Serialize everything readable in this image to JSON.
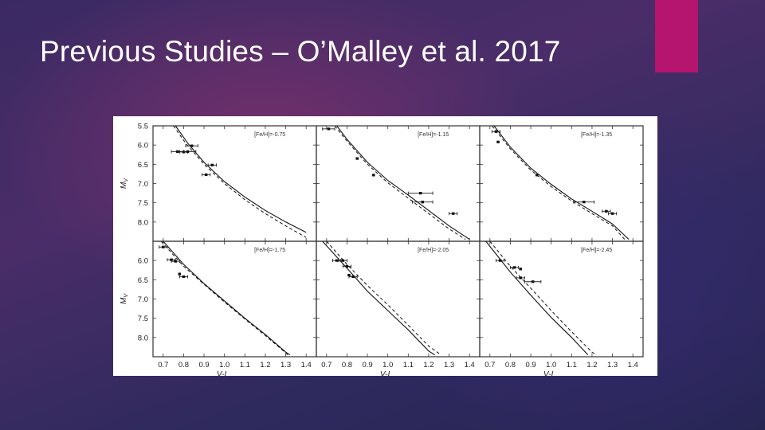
{
  "slide": {
    "title": "Previous Studies – O’Malley et al. 2017",
    "accent_color": "#b5156e",
    "title_color": "#ffffff"
  },
  "chart_data": {
    "type": "scatter",
    "layout": "2x3 grid",
    "xlabel": "V-I",
    "ylabel": "MV",
    "ylabel_main": "M",
    "ylabel_sub": "V",
    "xlim": [
      0.65,
      1.45
    ],
    "ylim": [
      8.5,
      5.5
    ],
    "y_inverted": true,
    "xticks": [
      0.7,
      0.8,
      0.9,
      1.0,
      1.1,
      1.2,
      1.3,
      1.4
    ],
    "xtick_labels": [
      "0.7",
      "0.8",
      "0.9",
      "1.0",
      "1.1",
      "1.2",
      "1.3",
      "1.4"
    ],
    "yticks": [
      5.5,
      6.0,
      6.5,
      7.0,
      7.5,
      8.0
    ],
    "ytick_labels": [
      "5.5",
      "6.0",
      "6.5",
      "7.0",
      "7.5",
      "8.0"
    ],
    "grid": false,
    "panels": [
      {
        "label": "[Fe/H]=-0.75",
        "points": [
          {
            "x": 0.77,
            "y": 6.17,
            "xerr": 0.03
          },
          {
            "x": 0.8,
            "y": 6.18,
            "xerr": 0.02
          },
          {
            "x": 0.82,
            "y": 6.17,
            "xerr": 0.04
          },
          {
            "x": 0.84,
            "y": 6.02,
            "xerr": 0.03
          },
          {
            "x": 0.91,
            "y": 6.77,
            "xerr": 0.02
          },
          {
            "x": 0.94,
            "y": 6.52,
            "xerr": 0.02
          }
        ],
        "solid_curve": [
          {
            "x": 0.76,
            "y": 5.5
          },
          {
            "x": 0.82,
            "y": 5.95
          },
          {
            "x": 0.9,
            "y": 6.45
          },
          {
            "x": 1.0,
            "y": 6.95
          },
          {
            "x": 1.1,
            "y": 7.35
          },
          {
            "x": 1.2,
            "y": 7.7
          },
          {
            "x": 1.3,
            "y": 8.0
          },
          {
            "x": 1.4,
            "y": 8.27
          }
        ],
        "dashed_curve": [
          {
            "x": 0.75,
            "y": 5.5
          },
          {
            "x": 0.81,
            "y": 5.95
          },
          {
            "x": 0.9,
            "y": 6.5
          },
          {
            "x": 1.0,
            "y": 7.0
          },
          {
            "x": 1.1,
            "y": 7.42
          },
          {
            "x": 1.2,
            "y": 7.78
          },
          {
            "x": 1.3,
            "y": 8.1
          },
          {
            "x": 1.4,
            "y": 8.4
          }
        ]
      },
      {
        "label": "[Fe/H]=-1.15",
        "points": [
          {
            "x": 0.71,
            "y": 5.58,
            "xerr": 0.03
          },
          {
            "x": 0.85,
            "y": 6.35,
            "xerr": 0.0
          },
          {
            "x": 0.93,
            "y": 6.78,
            "xerr": 0.0
          },
          {
            "x": 1.16,
            "y": 7.25,
            "xerr": 0.06
          },
          {
            "x": 1.17,
            "y": 7.48,
            "xerr": 0.05
          },
          {
            "x": 1.32,
            "y": 7.78,
            "xerr": 0.02
          }
        ],
        "solid_curve": [
          {
            "x": 0.75,
            "y": 5.5
          },
          {
            "x": 0.8,
            "y": 5.85
          },
          {
            "x": 0.9,
            "y": 6.45
          },
          {
            "x": 1.0,
            "y": 6.92
          },
          {
            "x": 1.1,
            "y": 7.3
          },
          {
            "x": 1.2,
            "y": 7.7
          },
          {
            "x": 1.3,
            "y": 8.1
          },
          {
            "x": 1.4,
            "y": 8.45
          }
        ],
        "dashed_curve": [
          {
            "x": 0.74,
            "y": 5.5
          },
          {
            "x": 0.8,
            "y": 5.9
          },
          {
            "x": 0.9,
            "y": 6.5
          },
          {
            "x": 1.0,
            "y": 6.98
          },
          {
            "x": 1.1,
            "y": 7.38
          },
          {
            "x": 1.2,
            "y": 7.78
          },
          {
            "x": 1.3,
            "y": 8.18
          },
          {
            "x": 1.38,
            "y": 8.45
          }
        ]
      },
      {
        "label": "[Fe/H]=-1.35",
        "points": [
          {
            "x": 0.73,
            "y": 5.65,
            "xerr": 0.02
          },
          {
            "x": 0.74,
            "y": 5.92,
            "xerr": 0.0
          },
          {
            "x": 0.93,
            "y": 6.78,
            "xerr": 0.0
          },
          {
            "x": 1.16,
            "y": 7.48,
            "xerr": 0.05
          },
          {
            "x": 1.27,
            "y": 7.72,
            "xerr": 0.02
          },
          {
            "x": 1.3,
            "y": 7.78,
            "xerr": 0.02
          }
        ],
        "solid_curve": [
          {
            "x": 0.72,
            "y": 5.5
          },
          {
            "x": 0.8,
            "y": 6.05
          },
          {
            "x": 0.9,
            "y": 6.6
          },
          {
            "x": 1.0,
            "y": 7.02
          },
          {
            "x": 1.1,
            "y": 7.4
          },
          {
            "x": 1.2,
            "y": 7.72
          },
          {
            "x": 1.3,
            "y": 8.05
          },
          {
            "x": 1.38,
            "y": 8.45
          }
        ],
        "dashed_curve": [
          {
            "x": 0.71,
            "y": 5.5
          },
          {
            "x": 0.8,
            "y": 6.1
          },
          {
            "x": 0.9,
            "y": 6.65
          },
          {
            "x": 1.0,
            "y": 7.08
          },
          {
            "x": 1.1,
            "y": 7.45
          },
          {
            "x": 1.2,
            "y": 7.78
          },
          {
            "x": 1.3,
            "y": 8.1
          },
          {
            "x": 1.36,
            "y": 8.45
          }
        ]
      },
      {
        "label": "[Fe/H]=-1.75",
        "points": [
          {
            "x": 0.7,
            "y": 5.65,
            "xerr": 0.02
          },
          {
            "x": 0.74,
            "y": 5.98,
            "xerr": 0.02
          },
          {
            "x": 0.76,
            "y": 6.02,
            "xerr": 0.02
          },
          {
            "x": 0.78,
            "y": 6.35,
            "xerr": 0.0
          },
          {
            "x": 0.8,
            "y": 6.42,
            "xerr": 0.02
          }
        ],
        "solid_curve": [
          {
            "x": 0.7,
            "y": 5.5
          },
          {
            "x": 0.8,
            "y": 6.1
          },
          {
            "x": 0.9,
            "y": 6.6
          },
          {
            "x": 1.0,
            "y": 7.05
          },
          {
            "x": 1.1,
            "y": 7.5
          },
          {
            "x": 1.2,
            "y": 7.92
          },
          {
            "x": 1.3,
            "y": 8.38
          },
          {
            "x": 1.32,
            "y": 8.45
          }
        ],
        "dashed_curve": [
          {
            "x": 0.69,
            "y": 5.5
          },
          {
            "x": 0.8,
            "y": 6.15
          },
          {
            "x": 0.9,
            "y": 6.62
          },
          {
            "x": 1.0,
            "y": 7.08
          },
          {
            "x": 1.1,
            "y": 7.52
          },
          {
            "x": 1.2,
            "y": 7.95
          },
          {
            "x": 1.3,
            "y": 8.4
          },
          {
            "x": 1.31,
            "y": 8.45
          }
        ]
      },
      {
        "label": "[Fe/H]=-2.05",
        "points": [
          {
            "x": 0.75,
            "y": 6.0,
            "xerr": 0.02
          },
          {
            "x": 0.78,
            "y": 6.0,
            "xerr": 0.02
          },
          {
            "x": 0.8,
            "y": 6.15,
            "xerr": 0.02
          },
          {
            "x": 0.81,
            "y": 6.38,
            "xerr": 0.0
          },
          {
            "x": 0.83,
            "y": 6.42,
            "xerr": 0.02
          }
        ],
        "solid_curve": [
          {
            "x": 0.68,
            "y": 5.5
          },
          {
            "x": 0.8,
            "y": 6.2
          },
          {
            "x": 0.9,
            "y": 6.8
          },
          {
            "x": 1.0,
            "y": 7.3
          },
          {
            "x": 1.1,
            "y": 7.8
          },
          {
            "x": 1.2,
            "y": 8.35
          },
          {
            "x": 1.23,
            "y": 8.45
          }
        ],
        "dashed_curve": [
          {
            "x": 0.7,
            "y": 5.5
          },
          {
            "x": 0.8,
            "y": 6.1
          },
          {
            "x": 0.9,
            "y": 6.65
          },
          {
            "x": 1.0,
            "y": 7.15
          },
          {
            "x": 1.1,
            "y": 7.68
          },
          {
            "x": 1.2,
            "y": 8.22
          },
          {
            "x": 1.26,
            "y": 8.45
          }
        ]
      },
      {
        "label": "[Fe/H]=-2.45",
        "points": [
          {
            "x": 0.75,
            "y": 6.0,
            "xerr": 0.02
          },
          {
            "x": 0.82,
            "y": 6.18,
            "xerr": 0.02
          },
          {
            "x": 0.85,
            "y": 6.22,
            "xerr": 0.0
          },
          {
            "x": 0.85,
            "y": 6.45,
            "xerr": 0.02
          },
          {
            "x": 0.91,
            "y": 6.55,
            "xerr": 0.04
          }
        ],
        "solid_curve": [
          {
            "x": 0.68,
            "y": 5.5
          },
          {
            "x": 0.8,
            "y": 6.3
          },
          {
            "x": 0.9,
            "y": 6.9
          },
          {
            "x": 1.0,
            "y": 7.48
          },
          {
            "x": 1.1,
            "y": 8.0
          },
          {
            "x": 1.18,
            "y": 8.45
          }
        ],
        "dashed_curve": [
          {
            "x": 0.7,
            "y": 5.5
          },
          {
            "x": 0.8,
            "y": 6.15
          },
          {
            "x": 0.9,
            "y": 6.72
          },
          {
            "x": 1.0,
            "y": 7.3
          },
          {
            "x": 1.1,
            "y": 7.85
          },
          {
            "x": 1.2,
            "y": 8.38
          },
          {
            "x": 1.22,
            "y": 8.45
          }
        ]
      }
    ]
  }
}
